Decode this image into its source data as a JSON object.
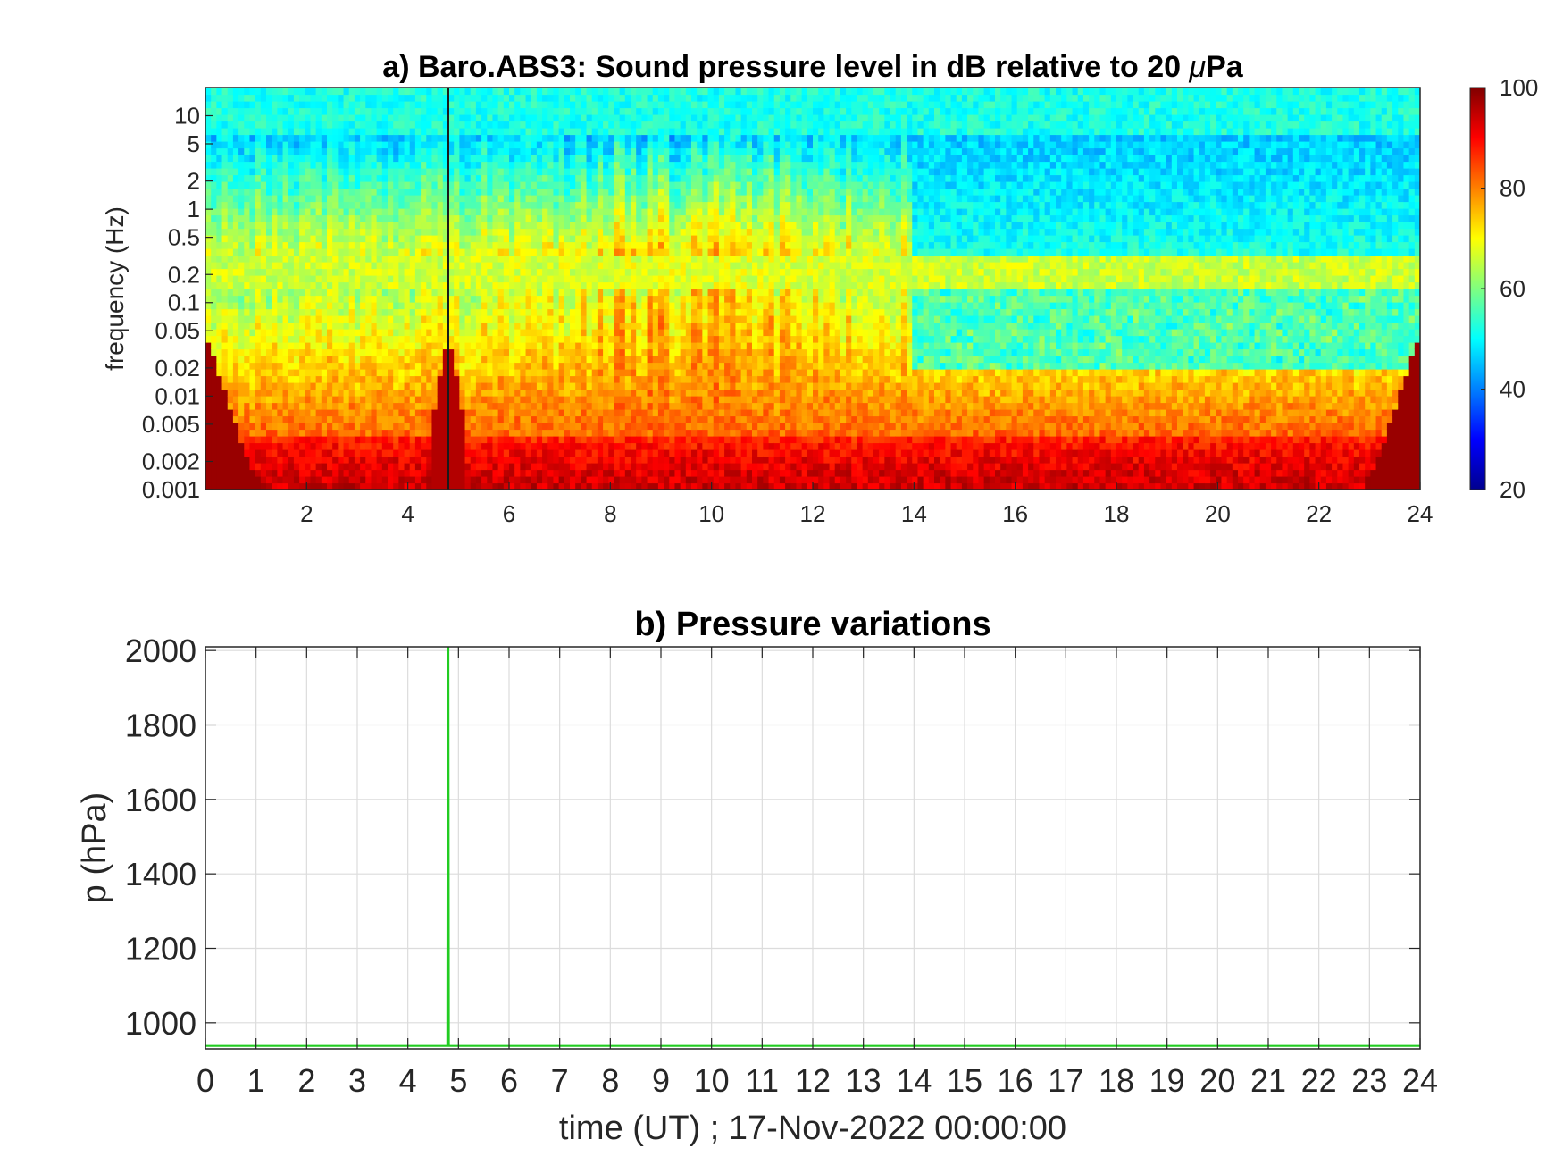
{
  "chart_data": [
    {
      "type": "heatmap",
      "title_prefix": "a) Baro.ABS3: Sound pressure level in dB relative to 20 ",
      "title_unit": "Pa",
      "title_mu": "μ",
      "ylabel": "frequency (Hz)",
      "x_ticks": [
        2,
        4,
        6,
        8,
        10,
        12,
        14,
        16,
        18,
        20,
        22,
        24
      ],
      "xlim": [
        0,
        24
      ],
      "y_scale": "log",
      "ylim": [
        0.001,
        20
      ],
      "y_ticks": [
        {
          "value": 10,
          "label": "10"
        },
        {
          "value": 5,
          "label": "5"
        },
        {
          "value": 2,
          "label": "2"
        },
        {
          "value": 1,
          "label": "1"
        },
        {
          "value": 0.5,
          "label": "0.5"
        },
        {
          "value": 0.2,
          "label": "0.2"
        },
        {
          "value": 0.1,
          "label": "0.1"
        },
        {
          "value": 0.05,
          "label": "0.05"
        },
        {
          "value": 0.02,
          "label": "0.02"
        },
        {
          "value": 0.01,
          "label": "0.01"
        },
        {
          "value": 0.005,
          "label": "0.005"
        },
        {
          "value": 0.002,
          "label": "0.002"
        },
        {
          "value": 0.001,
          "label": "0.001"
        }
      ],
      "colorbar": {
        "colormap": "jet",
        "range": [
          20,
          100
        ],
        "ticks": [
          100,
          80,
          60,
          40,
          20
        ]
      },
      "event_time": 4.8
    },
    {
      "type": "line",
      "title": "b) Pressure variations",
      "xlabel": "time (UT) ; 17-Nov-2022 00:00:00",
      "ylabel": "p (hPa)",
      "xlim": [
        0,
        24
      ],
      "ylim": [
        930,
        2010
      ],
      "x_ticks": [
        0,
        1,
        2,
        3,
        4,
        5,
        6,
        7,
        8,
        9,
        10,
        11,
        12,
        13,
        14,
        15,
        16,
        17,
        18,
        19,
        20,
        21,
        22,
        23,
        24
      ],
      "y_ticks": [
        2000,
        1800,
        1600,
        1400,
        1200,
        1000
      ],
      "grid": true,
      "series": [
        {
          "color": "#22cc22",
          "x": [
            0,
            4.78,
            4.79,
            4.8,
            4.81,
            24
          ],
          "y": [
            938,
            938,
            2010,
            2010,
            938,
            938
          ]
        }
      ]
    }
  ]
}
